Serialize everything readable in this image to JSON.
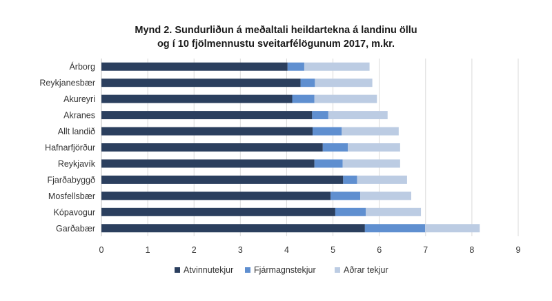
{
  "chart_data": {
    "type": "bar",
    "orientation": "horizontal",
    "stacked": true,
    "title_lines": [
      "Mynd 2. Sundurliðun á meðaltali heildartekna á landinu öllu",
      "og í 10 fjölmennustu sveitarfélögunum 2017, m.kr."
    ],
    "categories": [
      "Árborg",
      "Reykjanesbær",
      "Akureyri",
      "Akranes",
      "Allt landið",
      "Hafnarfjörður",
      "Reykjavík",
      "Fjarðabyggð",
      "Mosfellsbær",
      "Kópavogur",
      "Garðabær"
    ],
    "series": [
      {
        "name": "Atvinnutekjur",
        "color": "#2b3f5e",
        "values": [
          4.02,
          4.3,
          4.12,
          4.55,
          4.56,
          4.78,
          4.6,
          5.22,
          4.95,
          5.05,
          5.69
        ]
      },
      {
        "name": "Fjármagnstekjur",
        "color": "#5f8fd0",
        "values": [
          0.36,
          0.31,
          0.48,
          0.35,
          0.63,
          0.54,
          0.61,
          0.3,
          0.64,
          0.66,
          1.3
        ]
      },
      {
        "name": "Aðrar tekjur",
        "color": "#bccce3",
        "values": [
          1.41,
          1.24,
          1.35,
          1.28,
          1.23,
          1.13,
          1.24,
          1.08,
          1.1,
          1.19,
          1.18
        ]
      }
    ],
    "xlim": [
      0,
      9
    ],
    "x_ticks": [
      "0",
      "1",
      "2",
      "3",
      "4",
      "5",
      "6",
      "7",
      "8",
      "9"
    ],
    "grid": "vertical",
    "legend": "bottom",
    "xlabel": "",
    "ylabel": ""
  }
}
